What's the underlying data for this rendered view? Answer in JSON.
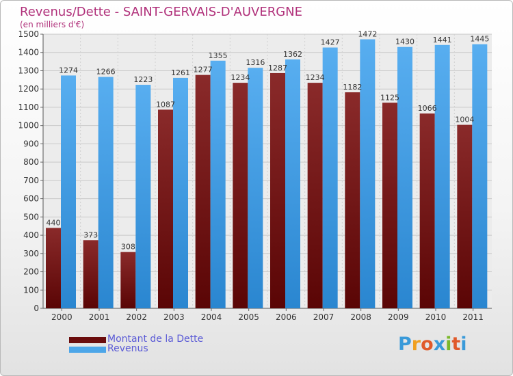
{
  "header": {
    "title": "Revenus/Dette - SAINT-GERVAIS-D'AUVERGNE",
    "subtitle": "(en milliers d'€)"
  },
  "legend": {
    "items": [
      {
        "label": "Montant de la Dette",
        "color": "#7a1010"
      },
      {
        "label": "Revenus",
        "color": "#4da6e8"
      }
    ]
  },
  "logo": {
    "text": "Proxiti",
    "letters": [
      {
        "ch": "P",
        "color": "#3a9ad9"
      },
      {
        "ch": "r",
        "color": "#f0a020"
      },
      {
        "ch": "o",
        "color": "#e05a2a"
      },
      {
        "ch": "x",
        "color": "#3a9ad9"
      },
      {
        "ch": "i",
        "color": "#7ab82a"
      },
      {
        "ch": "t",
        "color": "#e05a2a"
      },
      {
        "ch": "i",
        "color": "#3a9ad9"
      }
    ]
  },
  "chart_data": {
    "type": "bar",
    "title": "Revenus/Dette - SAINT-GERVAIS-D'AUVERGNE",
    "subtitle": "(en milliers d'€)",
    "categories": [
      "2000",
      "2001",
      "2002",
      "2003",
      "2004",
      "2005",
      "2006",
      "2007",
      "2008",
      "2009",
      "2010",
      "2011"
    ],
    "series": [
      {
        "name": "Montant de la Dette",
        "color": "#7a1010",
        "values": [
          440,
          373,
          308,
          1087,
          1277,
          1234,
          1287,
          1234,
          1182,
          1125,
          1066,
          1004
        ],
        "labels": [
          "440",
          "373",
          "308",
          "1087",
          "1277",
          "1234",
          "1287",
          "1234",
          "1182",
          "1125",
          "1066",
          "1004"
        ]
      },
      {
        "name": "Revenus",
        "color": "#4da6e8",
        "values": [
          1274,
          1266,
          1223,
          1261,
          1355,
          1316,
          1362,
          1427,
          1472,
          1430,
          1441,
          1445
        ],
        "labels": [
          "1274",
          "1266",
          "1223",
          "1261",
          "1355",
          "1316",
          "1362",
          "1427",
          "1472",
          "1430",
          "1441",
          "1445"
        ]
      }
    ],
    "ylim": [
      0,
      1500
    ],
    "yticks": [
      0,
      100,
      200,
      300,
      400,
      500,
      600,
      700,
      800,
      900,
      1000,
      1100,
      1200,
      1300,
      1400,
      1500
    ],
    "ytick_labels": [
      "0",
      "100",
      "200",
      "300",
      "400",
      "500",
      "600",
      "700",
      "800",
      "900",
      "1000",
      "1100",
      "1200",
      "1300",
      "1400",
      "1500"
    ],
    "grid": true,
    "legend_position": "bottom-left"
  }
}
